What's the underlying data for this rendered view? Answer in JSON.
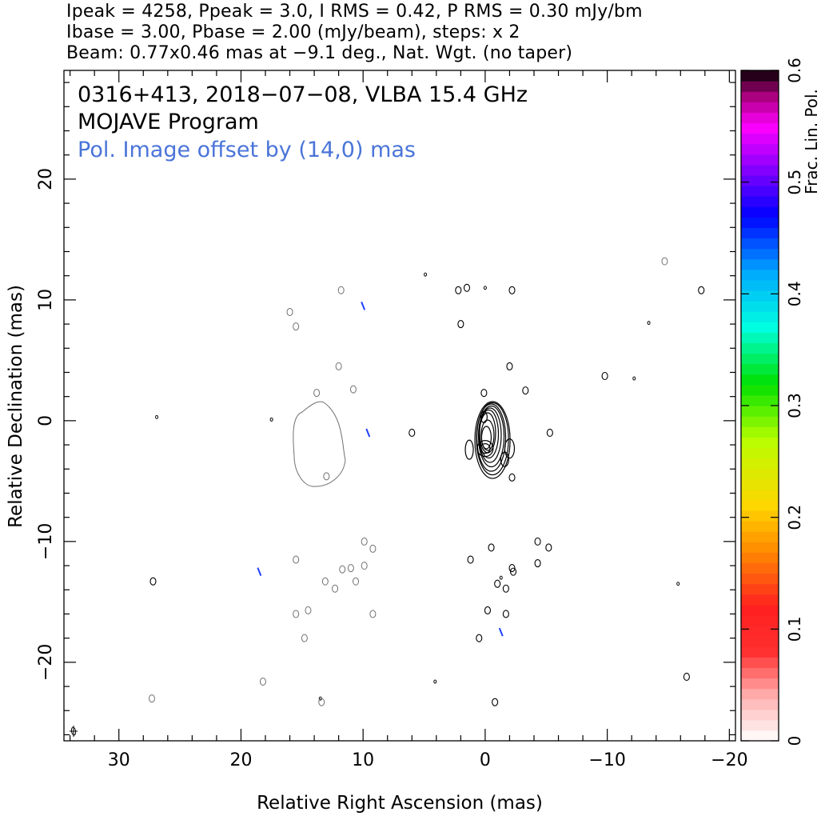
{
  "header": {
    "line1": "Ipeak = 4258, Ppeak = 3.0, I RMS = 0.42, P RMS = 0.30 mJy/bm",
    "line2": "Ibase = 3.00, Pbase = 2.00 (mJy/beam), steps: x 2",
    "line3": "Beam: 0.77x0.46 mas at −9.1 deg., Nat. Wgt. (no taper)"
  },
  "chart_data": {
    "type": "contour",
    "title_lines": [
      "0316+413, 2018−07−08, VLBA 15.4 GHz",
      "MOJAVE Program"
    ],
    "annotation": "Pol. Image offset by (14,0) mas",
    "xlabel": "Relative Right Ascension (mas)",
    "ylabel": "Relative Declination (mas)",
    "xlim": [
      34.5,
      -20.5
    ],
    "ylim": [
      -26.5,
      29
    ],
    "x_ticks": [
      30,
      20,
      10,
      0,
      -10,
      -20
    ],
    "x_tick_labels": [
      "30",
      "20",
      "10",
      "0",
      "−10",
      "−20"
    ],
    "y_ticks": [
      -20,
      -10,
      0,
      10,
      20
    ],
    "y_tick_labels": [
      "−20",
      "−10",
      "0",
      "10",
      "20"
    ],
    "colorbar": {
      "label": "Frac. Lin. Pol.",
      "range": [
        0,
        0.6
      ],
      "ticks": [
        0,
        0.1,
        0.2,
        0.3,
        0.4,
        0.5,
        0.6
      ],
      "tick_labels": [
        "0",
        "0.1",
        "0.2",
        "0.3",
        "0.4",
        "0.5",
        "0.6"
      ]
    },
    "contour_levels_mJy": [
      3,
      6,
      12,
      24,
      48,
      96,
      192,
      384,
      768,
      1536,
      3072
    ],
    "beam": {
      "major_mas": 0.77,
      "minor_mas": 0.46,
      "pa_deg": -9.1
    },
    "pol_offset_mas": [
      14,
      0
    ],
    "core_mas": [
      0,
      0
    ],
    "colors": {
      "stokes_i": "#000000",
      "pol": "#707070",
      "evpa": "#2040ff",
      "annotation": "#4a74d8"
    }
  }
}
